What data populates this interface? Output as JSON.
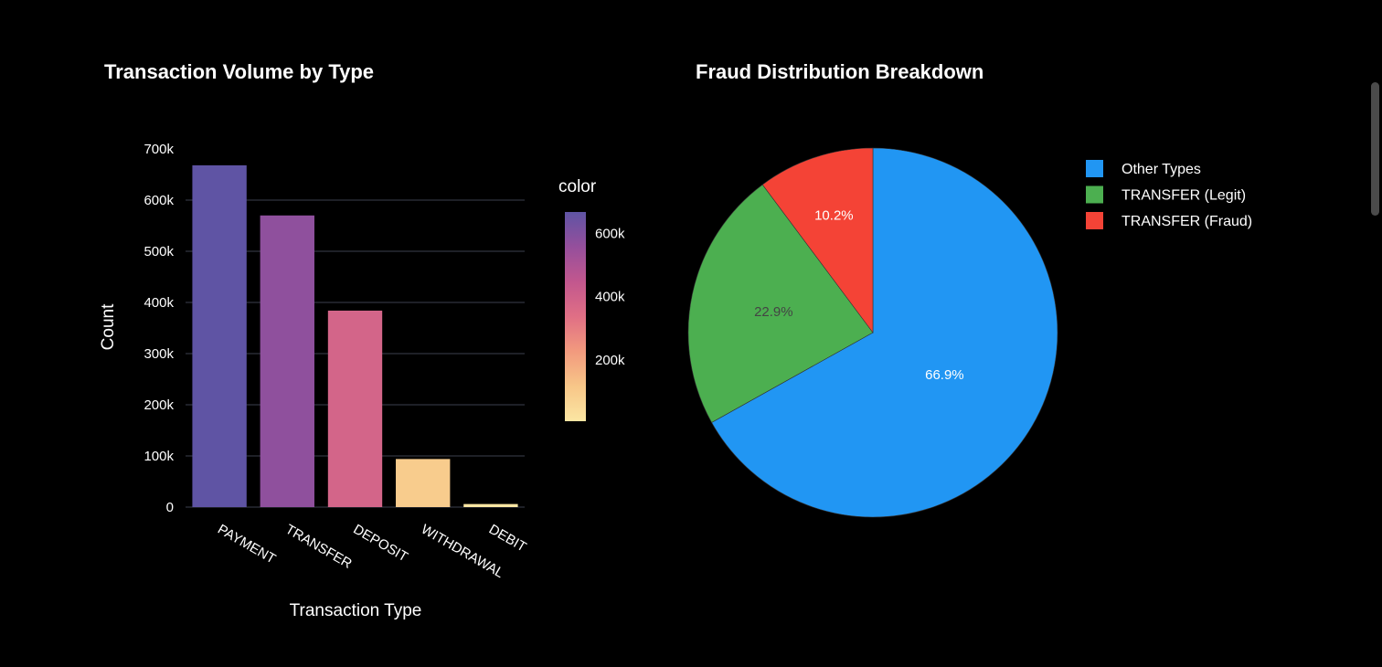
{
  "chart_data": [
    {
      "type": "bar",
      "title": "Transaction Volume by Type",
      "xlabel": "Transaction Type",
      "ylabel": "Count",
      "categories": [
        "PAYMENT",
        "TRANSFER",
        "DEPOSIT",
        "WITHDRAWAL",
        "DEBIT"
      ],
      "values": [
        668000,
        570000,
        384000,
        94000,
        6000
      ],
      "ylim": [
        0,
        700000
      ],
      "yticks": [
        0,
        100000,
        200000,
        300000,
        400000,
        500000,
        600000,
        700000
      ],
      "ytick_labels": [
        "0",
        "100k",
        "200k",
        "300k",
        "400k",
        "500k",
        "600k",
        "700k"
      ],
      "grid": true,
      "colorbar": {
        "title": "color",
        "range": [
          6000,
          668000
        ],
        "ticks": [
          200000,
          400000,
          600000
        ],
        "tick_labels": [
          "200k",
          "400k",
          "600k"
        ],
        "colorscale": [
          "#fbe6a3",
          "#f7c688",
          "#f29a7e",
          "#e06f85",
          "#c2578e",
          "#954f9c",
          "#5f54a4"
        ]
      }
    },
    {
      "type": "pie",
      "title": "Fraud Distribution Breakdown",
      "labels": [
        "Other Types",
        "TRANSFER (Legit)",
        "TRANSFER (Fraud)"
      ],
      "values": [
        66.9,
        22.9,
        10.2
      ],
      "slice_labels": [
        "66.9%",
        "22.9%",
        "10.2%"
      ],
      "colors": [
        "#2196f3",
        "#4caf50",
        "#f44336"
      ],
      "label_colors": [
        "#ffffff",
        "#444444",
        "#ffffff"
      ],
      "legend_position": "top-right"
    }
  ]
}
